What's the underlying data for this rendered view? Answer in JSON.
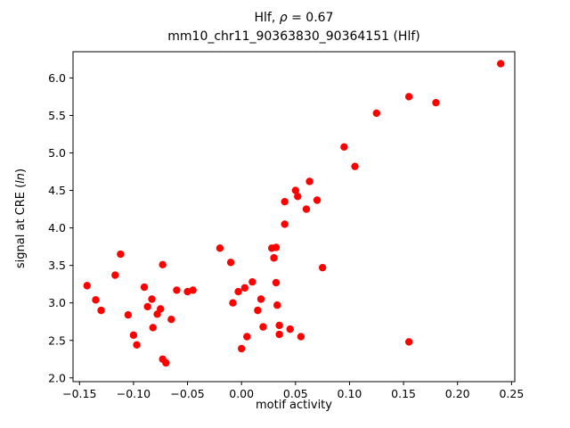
{
  "chart_data": {
    "type": "scatter",
    "title_line1": {
      "prefix": "Hlf, ",
      "rho": "ρ",
      "suffix": " = 0.67"
    },
    "title_line2": "mm10_chr11_90363830_90364151 (Hlf)",
    "xlabel": "motif activity",
    "ylabel": {
      "prefix": "signal at CRE (",
      "italic": "ln",
      "suffix": ")"
    },
    "xlim": [
      -0.156,
      0.253
    ],
    "ylim": [
      1.95,
      6.35
    ],
    "xtick_values": [
      -0.15,
      -0.1,
      -0.05,
      0.0,
      0.05,
      0.1,
      0.15,
      0.2,
      0.25
    ],
    "xtick_labels": [
      "−0.15",
      "−0.10",
      "−0.05",
      "0.00",
      "0.05",
      "0.10",
      "0.15",
      "0.20",
      "0.25"
    ],
    "ytick_values": [
      2.0,
      2.5,
      3.0,
      3.5,
      4.0,
      4.5,
      5.0,
      5.5,
      6.0
    ],
    "ytick_labels": [
      "2.0",
      "2.5",
      "3.0",
      "3.5",
      "4.0",
      "4.5",
      "5.0",
      "5.5",
      "6.0"
    ],
    "marker_color": "#ff0000",
    "grid": false,
    "legend": "none",
    "points": [
      [
        -0.143,
        3.23
      ],
      [
        -0.135,
        3.04
      ],
      [
        -0.13,
        2.9
      ],
      [
        -0.117,
        3.37
      ],
      [
        -0.112,
        3.65
      ],
      [
        -0.105,
        2.84
      ],
      [
        -0.1,
        2.57
      ],
      [
        -0.097,
        2.44
      ],
      [
        -0.09,
        3.21
      ],
      [
        -0.087,
        2.95
      ],
      [
        -0.083,
        3.05
      ],
      [
        -0.082,
        2.67
      ],
      [
        -0.078,
        2.85
      ],
      [
        -0.075,
        2.92
      ],
      [
        -0.073,
        3.51
      ],
      [
        -0.073,
        2.25
      ],
      [
        -0.07,
        2.2
      ],
      [
        -0.065,
        2.78
      ],
      [
        -0.06,
        3.17
      ],
      [
        -0.05,
        3.15
      ],
      [
        -0.045,
        3.17
      ],
      [
        -0.02,
        3.73
      ],
      [
        -0.01,
        3.54
      ],
      [
        -0.008,
        3.0
      ],
      [
        -0.003,
        3.15
      ],
      [
        0.0,
        2.39
      ],
      [
        0.003,
        3.2
      ],
      [
        0.005,
        2.55
      ],
      [
        0.01,
        3.28
      ],
      [
        0.015,
        2.9
      ],
      [
        0.018,
        3.05
      ],
      [
        0.02,
        2.68
      ],
      [
        0.028,
        3.73
      ],
      [
        0.03,
        3.6
      ],
      [
        0.032,
        3.74
      ],
      [
        0.032,
        3.27
      ],
      [
        0.033,
        2.97
      ],
      [
        0.035,
        2.7
      ],
      [
        0.035,
        2.58
      ],
      [
        0.04,
        4.35
      ],
      [
        0.04,
        4.05
      ],
      [
        0.045,
        2.65
      ],
      [
        0.05,
        4.5
      ],
      [
        0.052,
        4.42
      ],
      [
        0.055,
        2.55
      ],
      [
        0.06,
        4.25
      ],
      [
        0.063,
        4.62
      ],
      [
        0.07,
        4.37
      ],
      [
        0.075,
        3.47
      ],
      [
        0.095,
        5.08
      ],
      [
        0.105,
        4.82
      ],
      [
        0.125,
        5.53
      ],
      [
        0.155,
        5.75
      ],
      [
        0.155,
        2.48
      ],
      [
        0.18,
        5.67
      ],
      [
        0.24,
        6.19
      ]
    ]
  }
}
